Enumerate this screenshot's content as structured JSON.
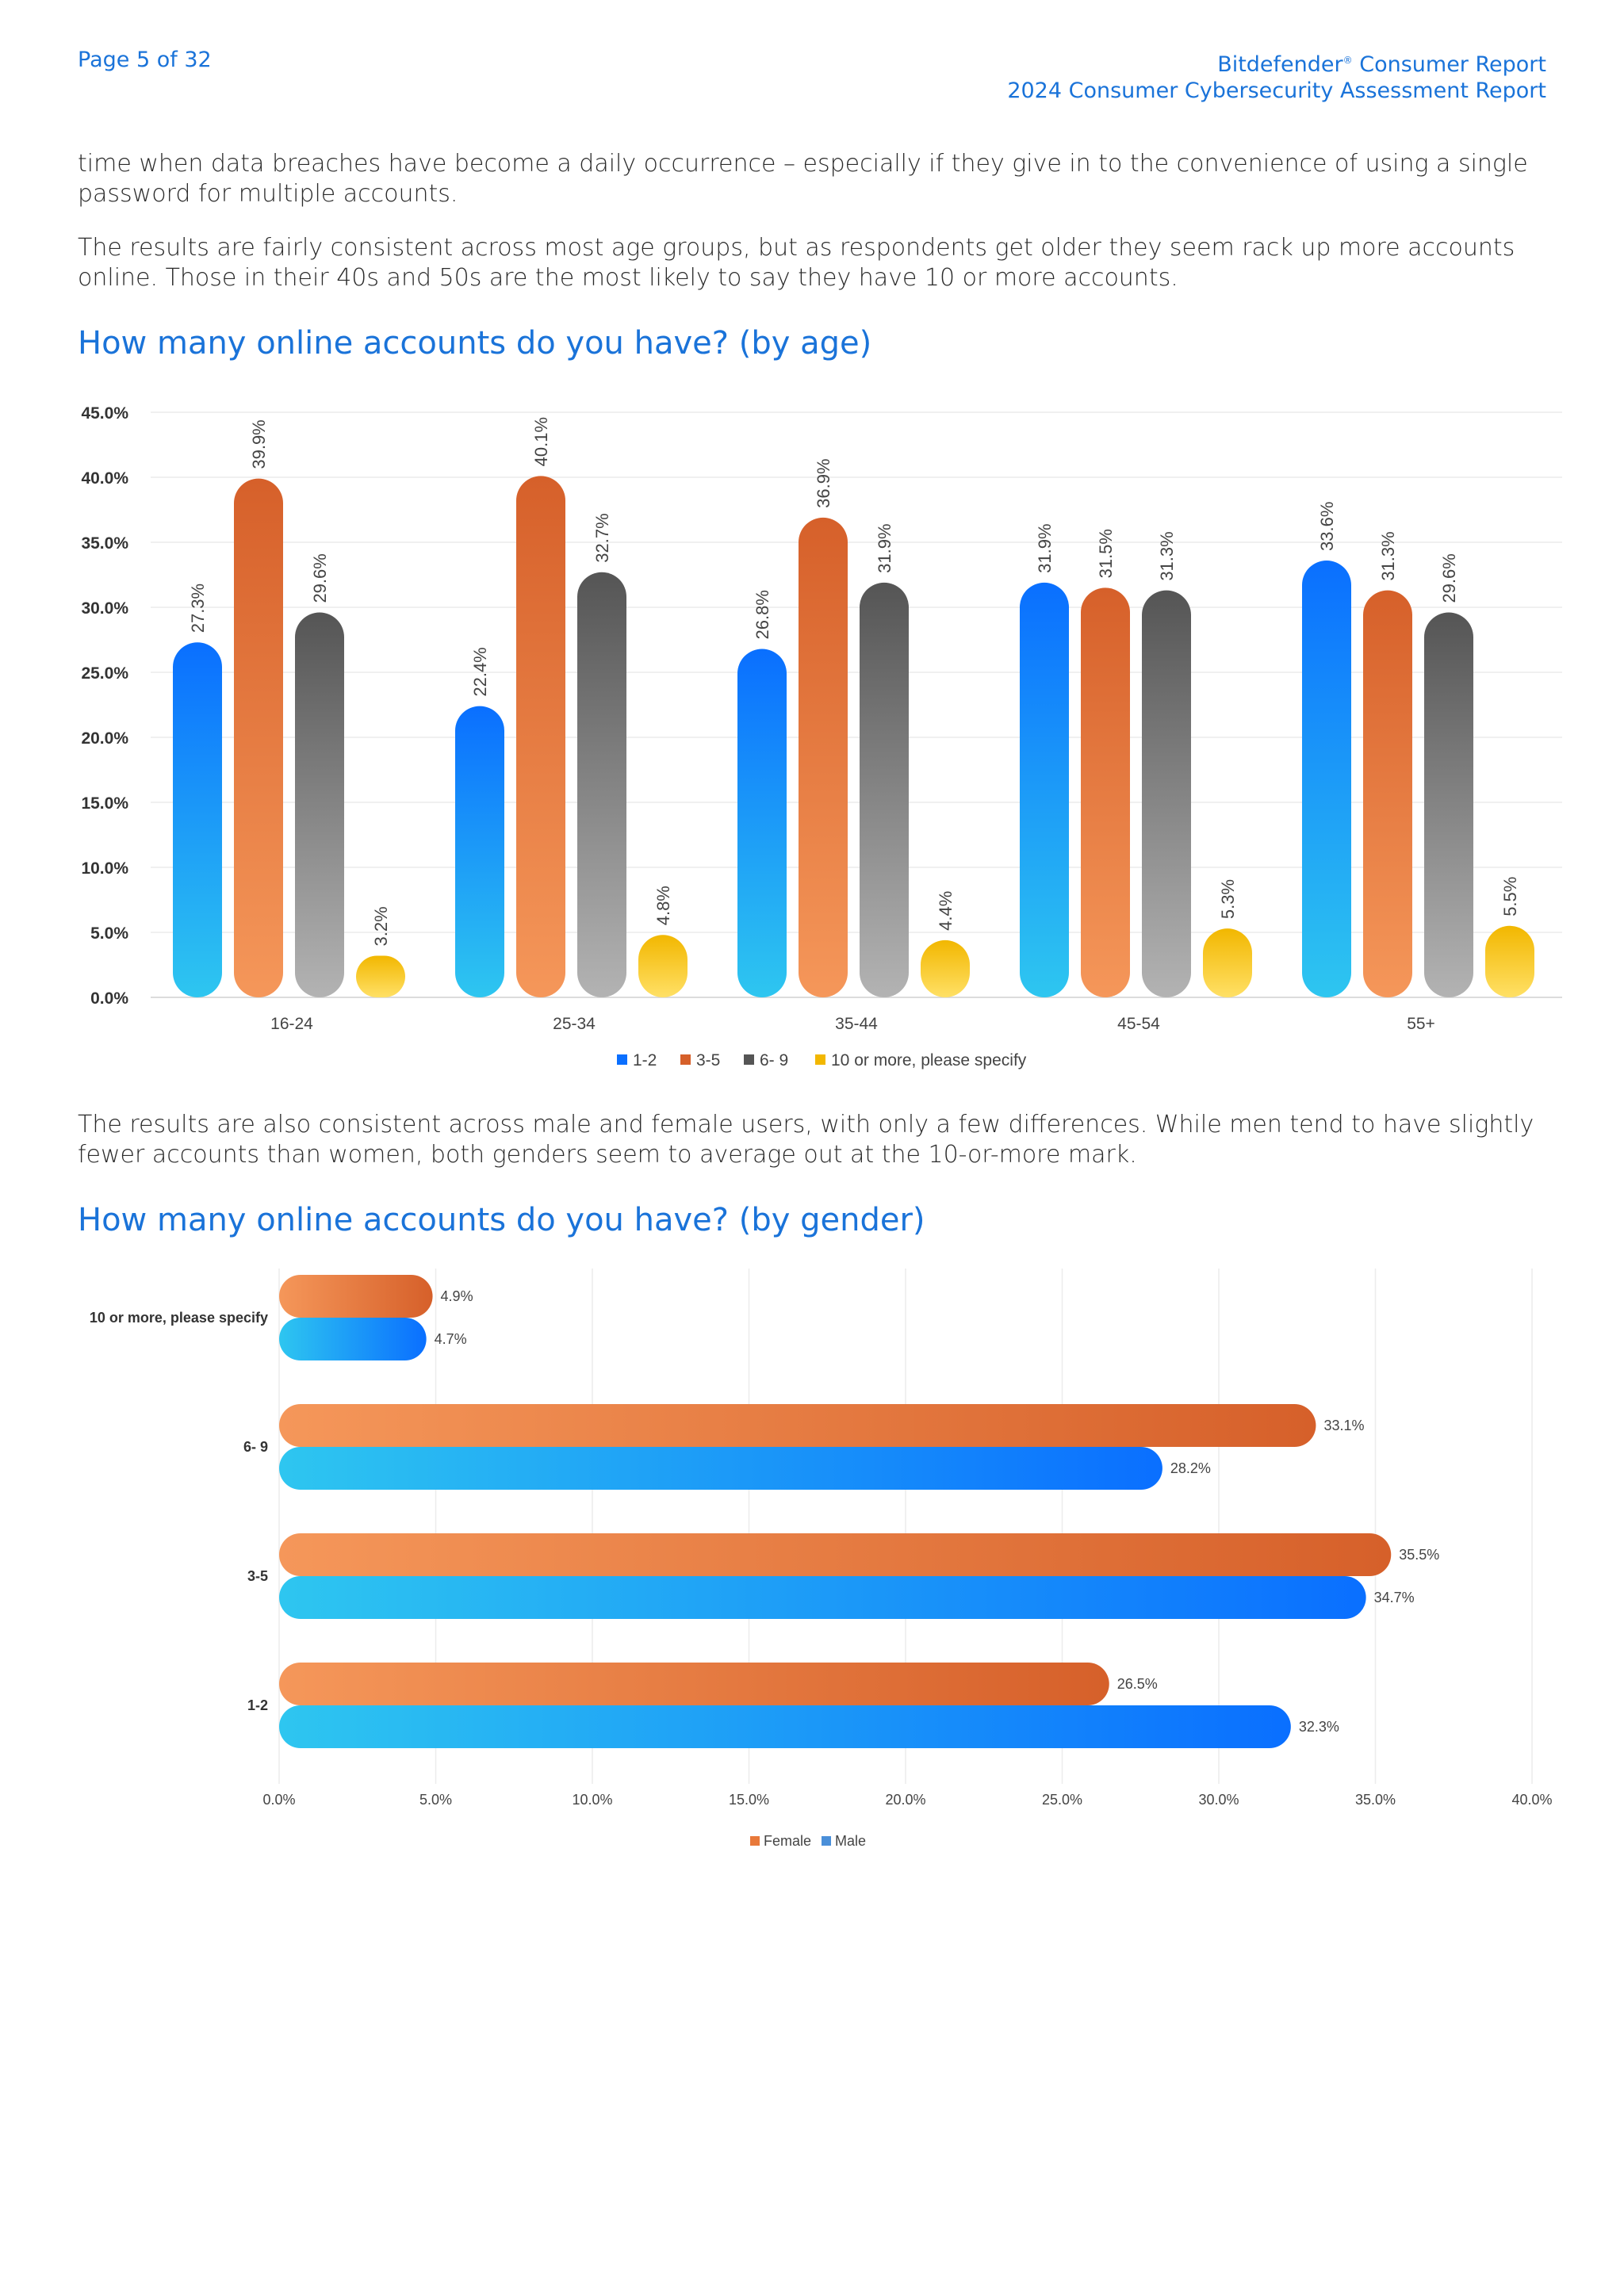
{
  "header": {
    "page_label": "Page 5 of 32",
    "brand": "Bitdefender",
    "brand_mark": "®",
    "report_line1_suffix": " Consumer Report",
    "report_line2": "2024 Consumer Cybersecurity Assessment Report"
  },
  "paragraphs": {
    "p1": "time when data breaches have become a daily occurrence – especially if they give in to the convenience of using a single password for multiple accounts.",
    "p2": "The results are fairly consistent across most age groups, but as respondents get older they seem rack up more accounts online. Those in their 40s and 50s are the most likely to say they have 10 or more accounts.",
    "p3": "The results are also consistent across male and female users, with only a few differences. While men tend to have slightly fewer accounts than women, both genders seem to average out at the 10-or-more mark."
  },
  "headings": {
    "age": "How many online accounts do you have? (by age)",
    "gender": "How many online accounts do you have? (by gender)"
  },
  "colors": {
    "blue_top": "#0a6fff",
    "blue_bottom": "#2ec6f0",
    "orange_top": "#d6602a",
    "orange_bottom": "#f5975a",
    "gray_top": "#555555",
    "gray_bottom": "#b3b3b3",
    "yellow_top": "#f2b700",
    "yellow_bottom": "#ffe066",
    "heading_blue": "#1a73d9"
  },
  "chart_data": [
    {
      "type": "bar",
      "categories": [
        "16-24",
        "25-34",
        "35-44",
        "45-54",
        "55+"
      ],
      "series": [
        {
          "name": "1-2",
          "values": [
            27.3,
            22.4,
            26.8,
            31.9,
            33.6
          ],
          "labels": [
            "27.3%",
            "22.4%",
            "26.8%",
            "31.9%",
            "33.6%"
          ]
        },
        {
          "name": "3-5",
          "values": [
            39.9,
            40.1,
            36.9,
            31.5,
            31.3
          ],
          "labels": [
            "39.9%",
            "40.1%",
            "36.9%",
            "31.5%",
            "31.3%"
          ]
        },
        {
          "name": "6- 9",
          "values": [
            29.6,
            32.7,
            31.9,
            31.3,
            29.6
          ],
          "labels": [
            "29.6%",
            "32.7%",
            "31.9%",
            "31.3%",
            "29.6%"
          ]
        },
        {
          "name": "10 or more, please specify",
          "values": [
            3.2,
            4.8,
            4.4,
            5.3,
            5.5
          ],
          "labels": [
            "3.2%",
            "4.8%",
            "4.4%",
            "5.3%",
            "5.5%"
          ]
        }
      ],
      "ylim": [
        0,
        45
      ],
      "yticks": [
        "0.0%",
        "5.0%",
        "10.0%",
        "15.0%",
        "20.0%",
        "25.0%",
        "30.0%",
        "35.0%",
        "40.0%",
        "45.0%"
      ],
      "grid": true,
      "legend": "bottom"
    },
    {
      "type": "bar",
      "orientation": "horizontal",
      "categories": [
        "10 or more, please specify",
        "6- 9",
        "3-5",
        "1-2"
      ],
      "series": [
        {
          "name": "Female",
          "values": [
            4.9,
            33.1,
            35.5,
            26.5
          ],
          "labels": [
            "4.9%",
            "33.1%",
            "35.5%",
            "26.5%"
          ]
        },
        {
          "name": "Male",
          "values": [
            4.7,
            28.2,
            34.7,
            32.3
          ],
          "labels": [
            "4.7%",
            "28.2%",
            "34.7%",
            "32.3%"
          ]
        }
      ],
      "xlim": [
        0,
        40
      ],
      "xticks": [
        "0.0%",
        "5.0%",
        "10.0%",
        "15.0%",
        "20.0%",
        "25.0%",
        "30.0%",
        "35.0%",
        "40.0%"
      ],
      "grid": true,
      "legend": "bottom"
    }
  ]
}
